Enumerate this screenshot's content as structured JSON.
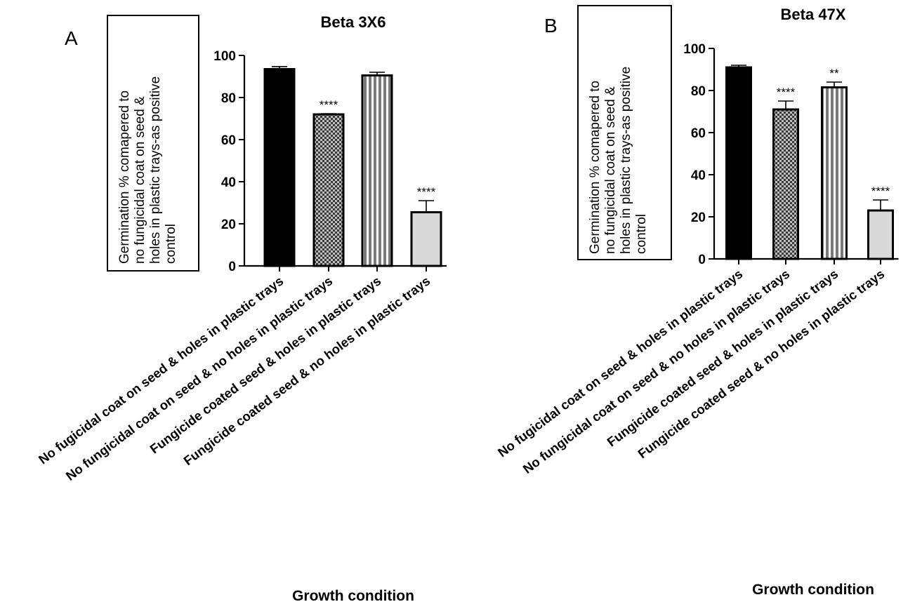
{
  "chart_data": [
    {
      "type": "bar",
      "panel": "A",
      "title": "Beta 3X6",
      "xlabel": "Growth condition",
      "ylabel_lines": [
        "Germination % comapered to",
        "no fungicidal coat on seed &",
        "holes in plastic trays-as positive",
        "control"
      ],
      "ylim": [
        0,
        100
      ],
      "yticks": [
        0,
        20,
        40,
        60,
        80,
        100
      ],
      "categories": [
        "No fugicidal coat on seed & holes in plastic trays",
        "No fungicidal coat on seed & no holes in plastic trays",
        "Fungicide coated seed & holes in plastic trays",
        "Fungicide coated seed & no holes in plastic trays"
      ],
      "values": [
        93.5,
        72,
        90.5,
        25.5
      ],
      "errors": [
        1.2,
        0.3,
        1.5,
        5.5
      ],
      "significance": [
        "",
        "****",
        "",
        "****"
      ],
      "patterns": [
        "solid-black",
        "checker",
        "vertical-stripes",
        "light-gray"
      ]
    },
    {
      "type": "bar",
      "panel": "B",
      "title": "Beta 47X",
      "xlabel": "Growth condition",
      "ylabel_lines": [
        "Germination % comapered to",
        "no fungicidal coat on seed &",
        "holes in plastic trays-as positive",
        "control"
      ],
      "ylim": [
        0,
        100
      ],
      "yticks": [
        0,
        20,
        40,
        60,
        80,
        100
      ],
      "categories": [
        "No fugicidal coat on seed & holes in plastic trays",
        "No fungicidal coat on seed & no holes in plastic trays",
        "Fungicide coated seed & holes in plastic trays",
        "Fungicide coated seed & no holes in plastic trays"
      ],
      "values": [
        91,
        71,
        81.5,
        23
      ],
      "errors": [
        1.0,
        4.0,
        2.5,
        5.0
      ],
      "significance": [
        "",
        "****",
        "**",
        "****"
      ],
      "patterns": [
        "solid-black",
        "checker",
        "vertical-stripes",
        "light-gray"
      ]
    }
  ]
}
